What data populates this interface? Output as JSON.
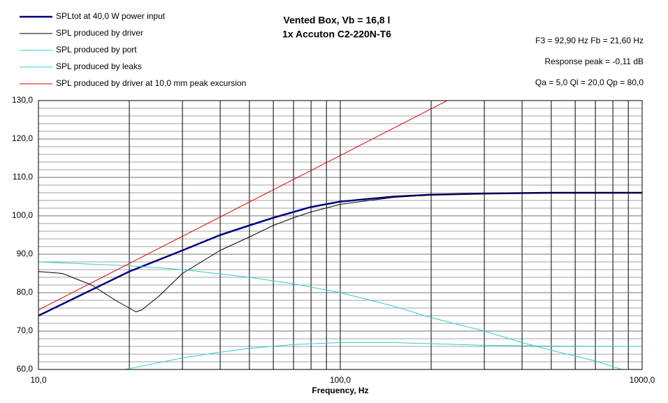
{
  "chart_data": {
    "type": "line",
    "title": "Vented Box, Vb = 16,8 l",
    "subtitle": "1x Accuton C2-220N-T6",
    "annotations": [
      "F3 = 92,90 Hz  Fb = 21,60 Hz",
      "Response peak = -0,11 dB",
      "Qa = 5,0  Ql = 20,0  Qp = 80,0"
    ],
    "x_label": "Frequency, Hz",
    "x_log": true,
    "grid": true,
    "legend": "top-left",
    "xlim": [
      10,
      1000
    ],
    "ylim": [
      60,
      130
    ],
    "xticks": [
      {
        "value": 10,
        "label": "10,0"
      },
      {
        "value": 100,
        "label": "100,0"
      },
      {
        "value": 1000,
        "label": "1000,0"
      }
    ],
    "xticks_minor": [
      20,
      30,
      40,
      50,
      60,
      70,
      80,
      90,
      200,
      300,
      400,
      500,
      600,
      700,
      800,
      900
    ],
    "yticks": [
      {
        "value": 60,
        "label": "60,0"
      },
      {
        "value": 70,
        "label": "70,0"
      },
      {
        "value": 80,
        "label": "80,0"
      },
      {
        "value": 90,
        "label": "90,0"
      },
      {
        "value": 100,
        "label": "100,0"
      },
      {
        "value": 110,
        "label": "110,0"
      },
      {
        "value": 120,
        "label": "120,0"
      },
      {
        "value": 130,
        "label": "130,0"
      }
    ],
    "yticks_minor": [
      62,
      64,
      66,
      68,
      72,
      74,
      76,
      78,
      82,
      84,
      86,
      88,
      92,
      94,
      96,
      98,
      102,
      104,
      106,
      108,
      112,
      114,
      116,
      118,
      122,
      124,
      126,
      128
    ],
    "series": [
      {
        "name": "SPLtot at 40,0 W power input",
        "color": "#000080",
        "width": 2.5,
        "x": [
          10,
          20,
          30,
          40,
          50,
          60,
          70,
          80,
          100,
          150,
          200,
          300,
          500,
          1000
        ],
        "values": [
          74,
          85.5,
          91,
          95,
          97.5,
          99.5,
          101,
          102.3,
          103.7,
          105,
          105.5,
          105.8,
          106,
          106
        ]
      },
      {
        "name": "SPL produced by driver",
        "color": "#000000",
        "width": 1,
        "x": [
          10,
          12,
          15,
          18,
          20,
          21,
          22,
          25,
          30,
          40,
          50,
          60,
          70,
          80,
          100,
          150,
          200,
          300,
          500,
          1000
        ],
        "values": [
          85.5,
          85,
          82,
          78,
          76,
          75,
          75.5,
          79,
          85,
          91,
          94.5,
          97.5,
          99.5,
          101,
          103,
          104.8,
          105.4,
          105.8,
          106,
          106
        ]
      },
      {
        "name": "SPL produced by port",
        "color": "#33cccc",
        "width": 1,
        "x": [
          19.3,
          30,
          40,
          50,
          70,
          100,
          150,
          200,
          300,
          500,
          1000
        ],
        "values": [
          60,
          63,
          64.5,
          65.5,
          66.5,
          67,
          67,
          66.7,
          66.3,
          66.1,
          66
        ]
      },
      {
        "name": "SPL produced by leaks",
        "color": "#33cccc",
        "width": 1,
        "x": [
          10,
          20,
          30,
          50,
          70,
          100,
          150,
          200,
          300,
          400,
          500,
          700,
          857
        ],
        "values": [
          88,
          87,
          86,
          84,
          82.3,
          80,
          76.5,
          73.5,
          70,
          67,
          65,
          62.2,
          60
        ]
      },
      {
        "name": "SPL produced by driver at 10,0 mm peak excursion",
        "color": "#e00000",
        "width": 1,
        "x": [
          10,
          20,
          50,
          100,
          226
        ],
        "values": [
          75.5,
          87.6,
          103.6,
          115.7,
          130
        ]
      }
    ]
  }
}
